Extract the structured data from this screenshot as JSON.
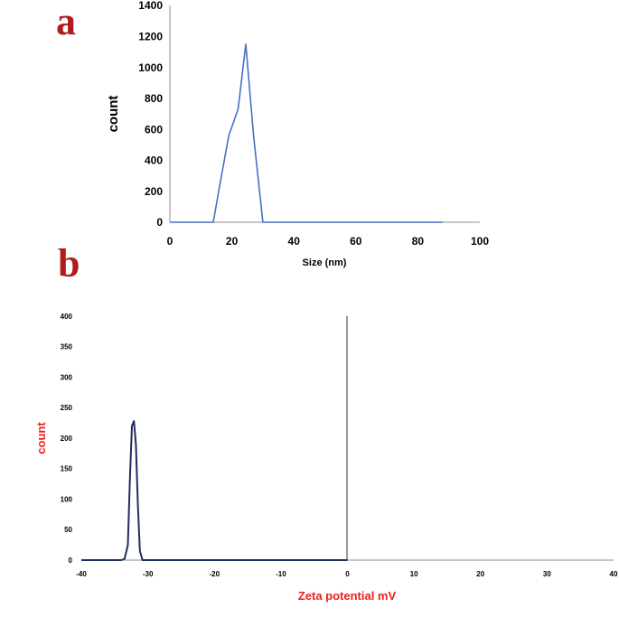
{
  "panels": {
    "a": "a",
    "b": "b"
  },
  "chart_data": [
    {
      "type": "line",
      "title": "",
      "xlabel": "Size (nm)",
      "ylabel": "count",
      "xlim": [
        0,
        100
      ],
      "ylim": [
        0,
        1400
      ],
      "xticks": [
        0,
        20,
        40,
        60,
        80,
        100
      ],
      "yticks": [
        0,
        200,
        400,
        600,
        800,
        1000,
        1200,
        1400
      ],
      "grid": false,
      "legend": "none",
      "color": "#4472c4",
      "series": [
        {
          "x": [
            0,
            14,
            16,
            19,
            22,
            24.5,
            27,
            30,
            35,
            50,
            70,
            88
          ],
          "y": [
            0,
            0,
            230,
            560,
            730,
            1150,
            560,
            0,
            0,
            0,
            0,
            0
          ]
        }
      ]
    },
    {
      "type": "line",
      "title": "",
      "xlabel": "Zeta potential mV",
      "ylabel": "count",
      "xlim": [
        -40,
        40
      ],
      "ylim": [
        0,
        400
      ],
      "xticks": [
        -40,
        -30,
        -20,
        -10,
        0,
        10,
        20,
        30,
        40
      ],
      "yticks": [
        0,
        50,
        100,
        150,
        200,
        250,
        300,
        350,
        400
      ],
      "grid": false,
      "legend": "none",
      "color": "#1f2d5c",
      "series": [
        {
          "x": [
            -40,
            -34,
            -33.5,
            -33,
            -32.7,
            -32.4,
            -32.1,
            -31.8,
            -31.5,
            -31.2,
            -30.8,
            -25,
            -10,
            0
          ],
          "y": [
            0,
            0,
            2,
            25,
            130,
            220,
            228,
            190,
            90,
            15,
            0,
            0,
            0,
            0
          ]
        }
      ]
    }
  ]
}
